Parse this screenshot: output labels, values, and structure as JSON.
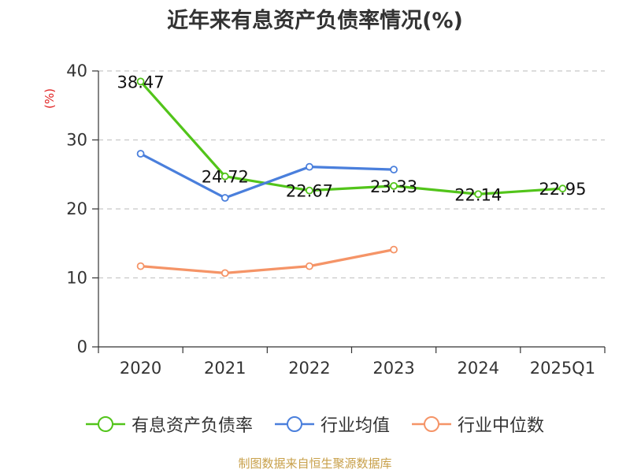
{
  "chart_data": {
    "type": "line",
    "title": "近年来有息资产负债率情况(%)",
    "ylabel": "(%)",
    "ylim": [
      0,
      40
    ],
    "yticks": [
      0,
      10,
      20,
      30,
      40
    ],
    "categories": [
      "2020",
      "2021",
      "2022",
      "2023",
      "2024",
      "2025Q1"
    ],
    "grid": true,
    "legend_position": "bottom",
    "series": [
      {
        "name": "有息资产负债率",
        "color": "#52c41a",
        "values": [
          38.47,
          24.72,
          22.67,
          23.33,
          22.14,
          22.95
        ],
        "labels": [
          "38.47",
          "24.72",
          "22.67",
          "23.33",
          "22.14",
          "22.95"
        ]
      },
      {
        "name": "行业均值",
        "color": "#4a7fdc",
        "values": [
          28.0,
          21.6,
          26.1,
          25.7,
          null,
          null
        ]
      },
      {
        "name": "行业中位数",
        "color": "#f59467",
        "values": [
          11.7,
          10.7,
          11.7,
          14.1,
          null,
          null
        ]
      }
    ]
  },
  "source": "制图数据来自恒生聚源数据库"
}
